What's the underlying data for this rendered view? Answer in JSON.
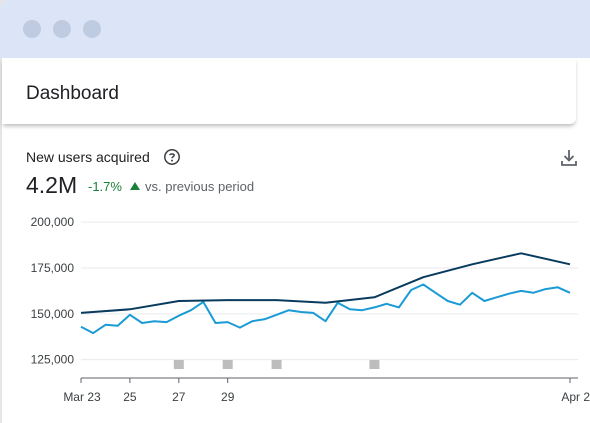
{
  "window": {
    "dots": [
      "dot-1",
      "dot-2",
      "dot-3"
    ]
  },
  "header": {
    "title": "Dashboard"
  },
  "metric": {
    "label": "New users acquired",
    "value": "4.2M",
    "change": "-1.7%",
    "compare": "vs. previous period",
    "help_icon": "help-circle-icon",
    "download_icon": "download-icon",
    "trend_icon": "triangle-up-icon"
  },
  "colors": {
    "current_series": "#1a9bd6",
    "previous_series": "#083b5e",
    "positive": "#188038",
    "annotation": "#bdbdbd"
  },
  "chart_data": {
    "type": "line",
    "x_tick_labels": [
      "Mar 23",
      "25",
      "27",
      "29",
      "Apr 2"
    ],
    "y_ticks": [
      "125,000",
      "150,000",
      "175,000",
      "200,000"
    ],
    "ylim": [
      115000,
      205000
    ],
    "series": [
      {
        "role": "current",
        "x": [
          0,
          0.5,
          1,
          1.5,
          2,
          2.5,
          3,
          3.5,
          4,
          4.5,
          5,
          5.5,
          6,
          6.5,
          7,
          7.5,
          8,
          8.5,
          9,
          9.5,
          10,
          10.5,
          11,
          11.5,
          12,
          12.5,
          13,
          13.5,
          14,
          14.5,
          15,
          15.5,
          16,
          16.5,
          17,
          17.5,
          18,
          18.5,
          19,
          19.5,
          20
        ],
        "values": [
          143000,
          139500,
          144000,
          143500,
          149500,
          145000,
          146000,
          145500,
          149000,
          152000,
          156500,
          145000,
          145500,
          142500,
          146000,
          147000,
          149500,
          152000,
          151000,
          150500,
          146000,
          156000,
          152500,
          152000,
          153500,
          155500,
          153500,
          163000,
          166000,
          161500,
          157000,
          155000,
          161500,
          157000,
          159000,
          161000,
          162500,
          161500,
          163500,
          164500,
          161500
        ]
      },
      {
        "role": "previous",
        "x": [
          0,
          2,
          4,
          6,
          8,
          10,
          12,
          14,
          16,
          18,
          20
        ],
        "values": [
          150500,
          152500,
          157000,
          157500,
          157500,
          156000,
          159000,
          170000,
          177000,
          183000,
          177000
        ]
      }
    ],
    "annotation_marks_x": [
      4,
      6,
      8,
      12
    ],
    "grid": true
  }
}
